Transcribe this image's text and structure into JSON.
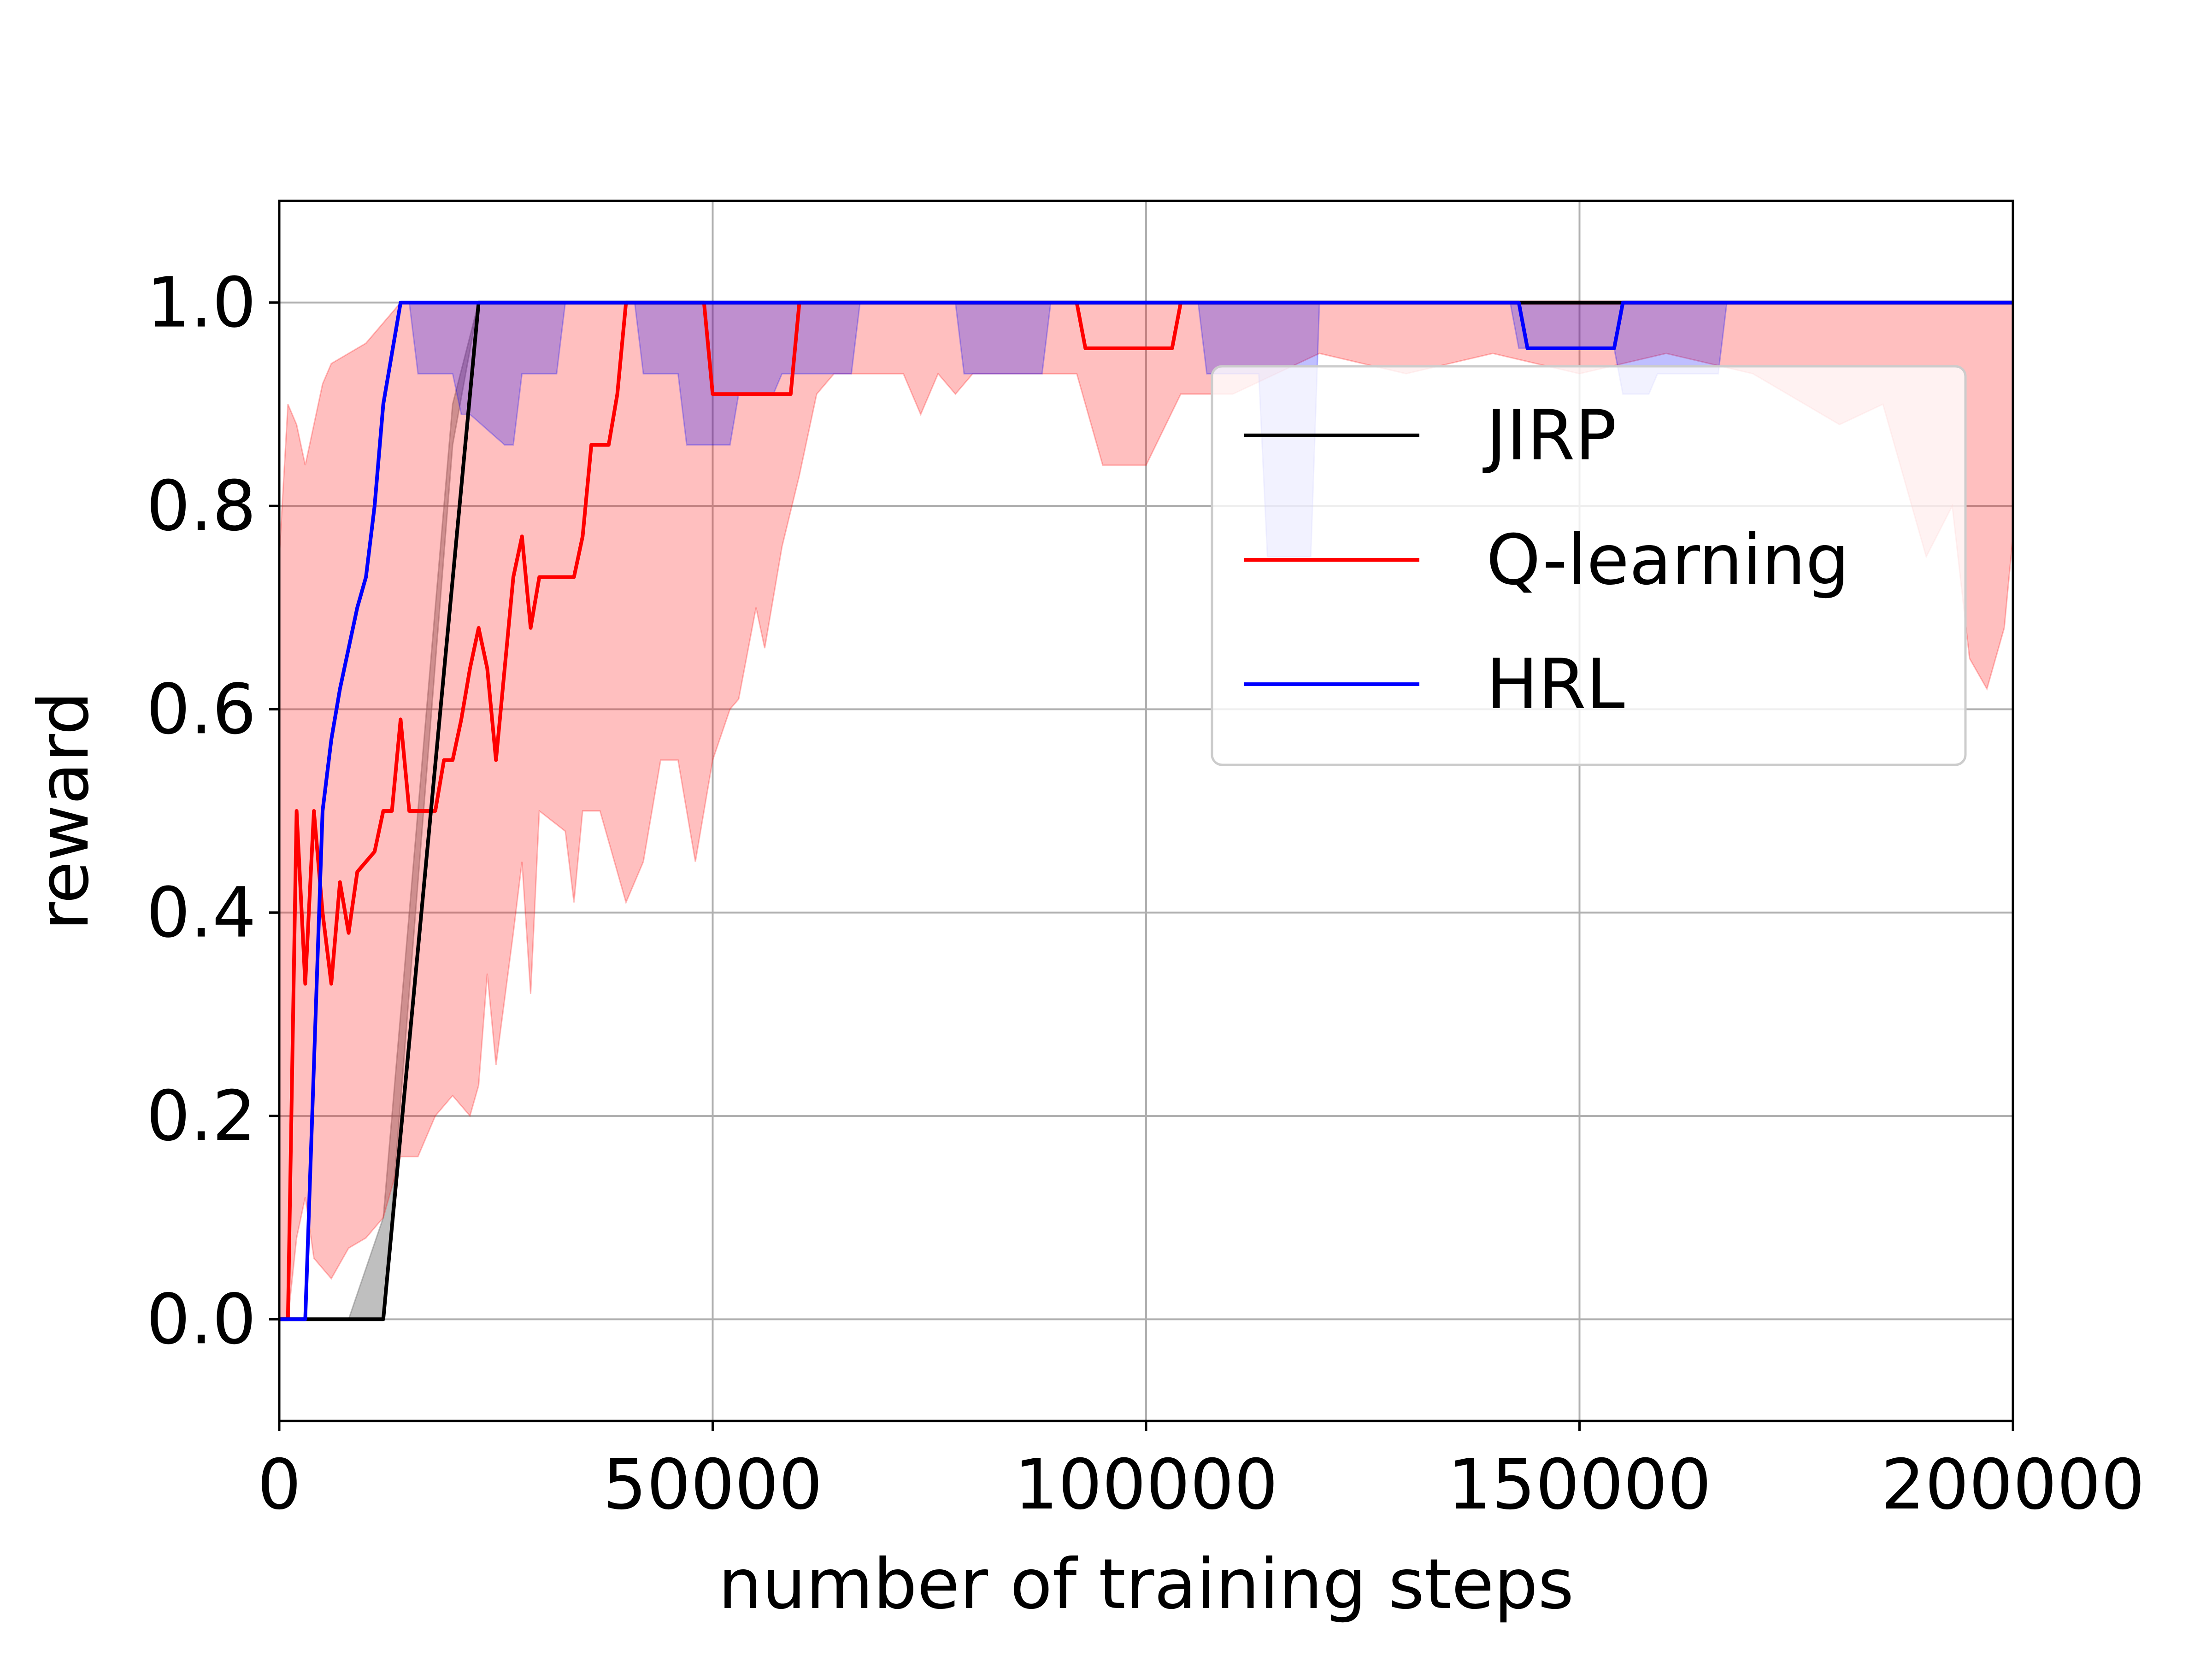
{
  "chart_data": {
    "type": "line",
    "title": "",
    "xlabel": "number of training steps",
    "ylabel": "reward",
    "xlim": [
      0,
      200000
    ],
    "ylim": [
      -0.1,
      1.1
    ],
    "x_ticks": [
      0,
      50000,
      100000,
      150000,
      200000
    ],
    "x_tick_labels": [
      "0",
      "50000",
      "100000",
      "150000",
      "200000"
    ],
    "y_ticks": [
      0.0,
      0.2,
      0.4,
      0.6,
      0.8,
      1.0
    ],
    "y_tick_labels": [
      "0.0",
      "0.2",
      "0.4",
      "0.6",
      "0.8",
      "1.0"
    ],
    "grid": true,
    "legend_position": "upper-right",
    "series": [
      {
        "name": "JIRP",
        "color": "#000000",
        "x": [
          0,
          8000,
          12000,
          23000,
          200000
        ],
        "y": [
          0.0,
          0.0,
          0.0,
          1.0,
          1.0
        ],
        "band": {
          "fill": "#808080",
          "opacity": 0.5,
          "x": [
            0,
            8000,
            12000,
            20000,
            23000,
            200000
          ],
          "lower": [
            0.0,
            0.0,
            0.0,
            0.86,
            1.0,
            1.0
          ],
          "upper": [
            0.0,
            0.0,
            0.1,
            0.9,
            1.0,
            1.0
          ]
        }
      },
      {
        "name": "Q-learning",
        "color": "#ff0000",
        "x": [
          0,
          1000,
          2000,
          3000,
          4000,
          5000,
          6000,
          7000,
          8000,
          9000,
          10000,
          11000,
          12000,
          13000,
          14000,
          15000,
          16000,
          17000,
          18000,
          19000,
          20000,
          21000,
          22000,
          23000,
          24000,
          25000,
          26000,
          27000,
          28000,
          29000,
          30000,
          31000,
          32000,
          33000,
          34000,
          35000,
          36000,
          37000,
          38000,
          39000,
          40000,
          49000,
          50000,
          59000,
          60000,
          92000,
          93000,
          103000,
          104000,
          143000,
          144000,
          154000,
          155000,
          200000
        ],
        "y": [
          0.0,
          0.0,
          0.5,
          0.33,
          0.5,
          0.4,
          0.33,
          0.43,
          0.38,
          0.44,
          0.45,
          0.46,
          0.5,
          0.5,
          0.59,
          0.5,
          0.5,
          0.5,
          0.5,
          0.55,
          0.55,
          0.59,
          0.64,
          0.68,
          0.64,
          0.55,
          0.64,
          0.73,
          0.77,
          0.68,
          0.73,
          0.73,
          0.73,
          0.73,
          0.73,
          0.77,
          0.86,
          0.86,
          0.86,
          0.91,
          1.0,
          1.0,
          0.91,
          0.91,
          1.0,
          1.0,
          0.955,
          0.955,
          1.0,
          1.0,
          1.0,
          1.0,
          1.0,
          1.0
        ],
        "band": {
          "fill": "#ff0000",
          "opacity": 0.25,
          "x": [
            0,
            1000,
            2000,
            3000,
            4000,
            5000,
            6000,
            8000,
            10000,
            12000,
            14000,
            15000,
            16000,
            18000,
            20000,
            22000,
            23000,
            24000,
            25000,
            27000,
            28000,
            29000,
            30000,
            33000,
            34000,
            35000,
            37000,
            40000,
            42000,
            44000,
            46000,
            48000,
            49000,
            50000,
            52000,
            53000,
            55000,
            56000,
            58000,
            60000,
            62000,
            64000,
            66000,
            68000,
            70000,
            72000,
            74000,
            76000,
            78000,
            80000,
            85000,
            90000,
            92000,
            95000,
            100000,
            104000,
            110000,
            120000,
            130000,
            140000,
            150000,
            160000,
            170000,
            180000,
            185000,
            190000,
            193000,
            195000,
            197000,
            199000,
            200000
          ],
          "lower": [
            0.0,
            0.0,
            0.08,
            0.12,
            0.06,
            0.05,
            0.04,
            0.07,
            0.08,
            0.1,
            0.16,
            0.16,
            0.16,
            0.2,
            0.22,
            0.2,
            0.23,
            0.34,
            0.25,
            0.38,
            0.45,
            0.32,
            0.5,
            0.48,
            0.41,
            0.5,
            0.5,
            0.41,
            0.45,
            0.55,
            0.55,
            0.45,
            0.5,
            0.55,
            0.6,
            0.61,
            0.7,
            0.66,
            0.76,
            0.83,
            0.91,
            0.93,
            0.93,
            0.93,
            0.93,
            0.93,
            0.89,
            0.93,
            0.91,
            0.93,
            0.93,
            0.93,
            0.93,
            0.84,
            0.84,
            0.91,
            0.91,
            0.95,
            0.93,
            0.95,
            0.93,
            0.95,
            0.93,
            0.88,
            0.9,
            0.75,
            0.8,
            0.65,
            0.62,
            0.68,
            0.77
          ],
          "upper": [
            0.75,
            0.9,
            0.88,
            0.84,
            0.88,
            0.92,
            0.94,
            0.95,
            0.96,
            0.98,
            1.0,
            1.0,
            1.0,
            1.0,
            1.0,
            1.0,
            1.0,
            1.0,
            1.0,
            1.0,
            1.0,
            1.0,
            1.0,
            1.0,
            1.0,
            1.0,
            1.0,
            1.0,
            1.0,
            1.0,
            1.0,
            1.0,
            1.0,
            1.0,
            1.0,
            1.0,
            1.0,
            1.0,
            1.0,
            1.0,
            1.0,
            1.0,
            1.0,
            1.0,
            1.0,
            1.0,
            1.0,
            1.0,
            1.0,
            1.0,
            1.0,
            1.0,
            1.0,
            1.0,
            1.0,
            1.0,
            1.0,
            1.0,
            1.0,
            1.0,
            1.0,
            1.0,
            1.0,
            1.0,
            1.0,
            1.0,
            1.0,
            1.0,
            1.0,
            1.0,
            1.0
          ]
        }
      },
      {
        "name": "HRL",
        "color": "#0000ff",
        "x": [
          0,
          3000,
          4000,
          5000,
          6000,
          7000,
          8000,
          9000,
          10000,
          11000,
          12000,
          13000,
          14000,
          143000,
          144000,
          154000,
          155000,
          200000
        ],
        "y": [
          0.0,
          0.0,
          0.25,
          0.5,
          0.57,
          0.62,
          0.66,
          0.7,
          0.73,
          0.8,
          0.9,
          0.95,
          1.0,
          1.0,
          0.955,
          0.955,
          1.0,
          1.0
        ],
        "band": {
          "fill": "#0000ff",
          "opacity": 0.25,
          "x": [
            14000,
            15000,
            16000,
            20000,
            21000,
            22000,
            26000,
            27000,
            28000,
            32000,
            33000,
            41000,
            42000,
            46000,
            47000,
            52000,
            53000,
            57000,
            58000,
            66000,
            67000,
            78000,
            79000,
            88000,
            89000,
            106000,
            107000,
            113000,
            114000,
            119000,
            120000,
            142000,
            143000,
            154000,
            155000,
            158000,
            159000,
            166000,
            167000,
            168000
          ],
          "lower": [
            1.0,
            1.0,
            0.93,
            0.93,
            0.89,
            0.89,
            0.86,
            0.86,
            0.93,
            0.93,
            1.0,
            1.0,
            0.93,
            0.93,
            0.86,
            0.86,
            0.91,
            0.91,
            0.93,
            0.93,
            1.0,
            1.0,
            0.93,
            0.93,
            1.0,
            1.0,
            0.93,
            0.93,
            0.75,
            0.75,
            1.0,
            1.0,
            0.955,
            0.955,
            0.91,
            0.91,
            0.93,
            0.93,
            1.0,
            1.0
          ],
          "upper": [
            1.0,
            1.0,
            1.0,
            1.0,
            1.0,
            1.0,
            1.0,
            1.0,
            1.0,
            1.0,
            1.0,
            1.0,
            1.0,
            1.0,
            1.0,
            1.0,
            1.0,
            1.0,
            1.0,
            1.0,
            1.0,
            1.0,
            1.0,
            1.0,
            1.0,
            1.0,
            1.0,
            1.0,
            1.0,
            1.0,
            1.0,
            1.0,
            1.0,
            1.0,
            1.0,
            1.0,
            1.0,
            1.0,
            1.0,
            1.0
          ]
        }
      }
    ]
  }
}
